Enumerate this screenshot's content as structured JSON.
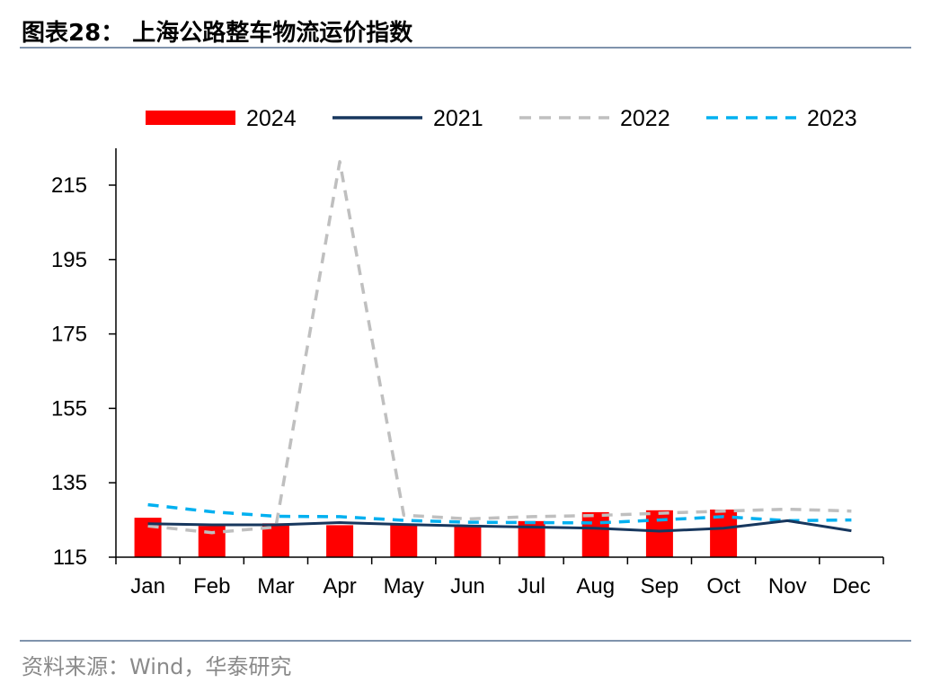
{
  "header": {
    "title": "图表28：  上海公路整车物流运价指数"
  },
  "footer": {
    "source": "资料来源：Wind，华泰研究"
  },
  "colors": {
    "2024": "#ff0000",
    "2021": "#17375e",
    "2022": "#bfbfbf",
    "2023": "#00b0f0",
    "rule": "#7f93ac"
  },
  "chart_data": {
    "type": "bar",
    "categories": [
      "Jan",
      "Feb",
      "Mar",
      "Apr",
      "May",
      "Jun",
      "Jul",
      "Aug",
      "Sep",
      "Oct",
      "Nov",
      "Dec"
    ],
    "ylim": [
      115,
      225
    ],
    "yticks": [
      115,
      135,
      155,
      175,
      195,
      215
    ],
    "legend": {
      "position": "top"
    },
    "series": [
      {
        "name": "2024",
        "kind": "bar",
        "values": [
          125.6,
          123.4,
          124.1,
          123.6,
          124.0,
          123.7,
          124.7,
          127.1,
          127.6,
          127.8,
          null,
          null
        ]
      },
      {
        "name": "2021",
        "kind": "line-solid",
        "values": [
          124.0,
          123.7,
          123.7,
          124.3,
          123.8,
          123.4,
          123.1,
          122.8,
          122.0,
          122.8,
          124.8,
          122.1
        ]
      },
      {
        "name": "2022",
        "kind": "line-dashed",
        "values": [
          123.4,
          121.6,
          123.1,
          221.3,
          126.3,
          125.3,
          125.9,
          126.2,
          126.8,
          127.4,
          127.9,
          127.4
        ]
      },
      {
        "name": "2023",
        "kind": "line-dashed",
        "values": [
          129.1,
          127.2,
          126.0,
          125.9,
          124.9,
          124.4,
          124.3,
          124.2,
          125.0,
          125.9,
          124.8,
          125.0
        ]
      }
    ]
  }
}
